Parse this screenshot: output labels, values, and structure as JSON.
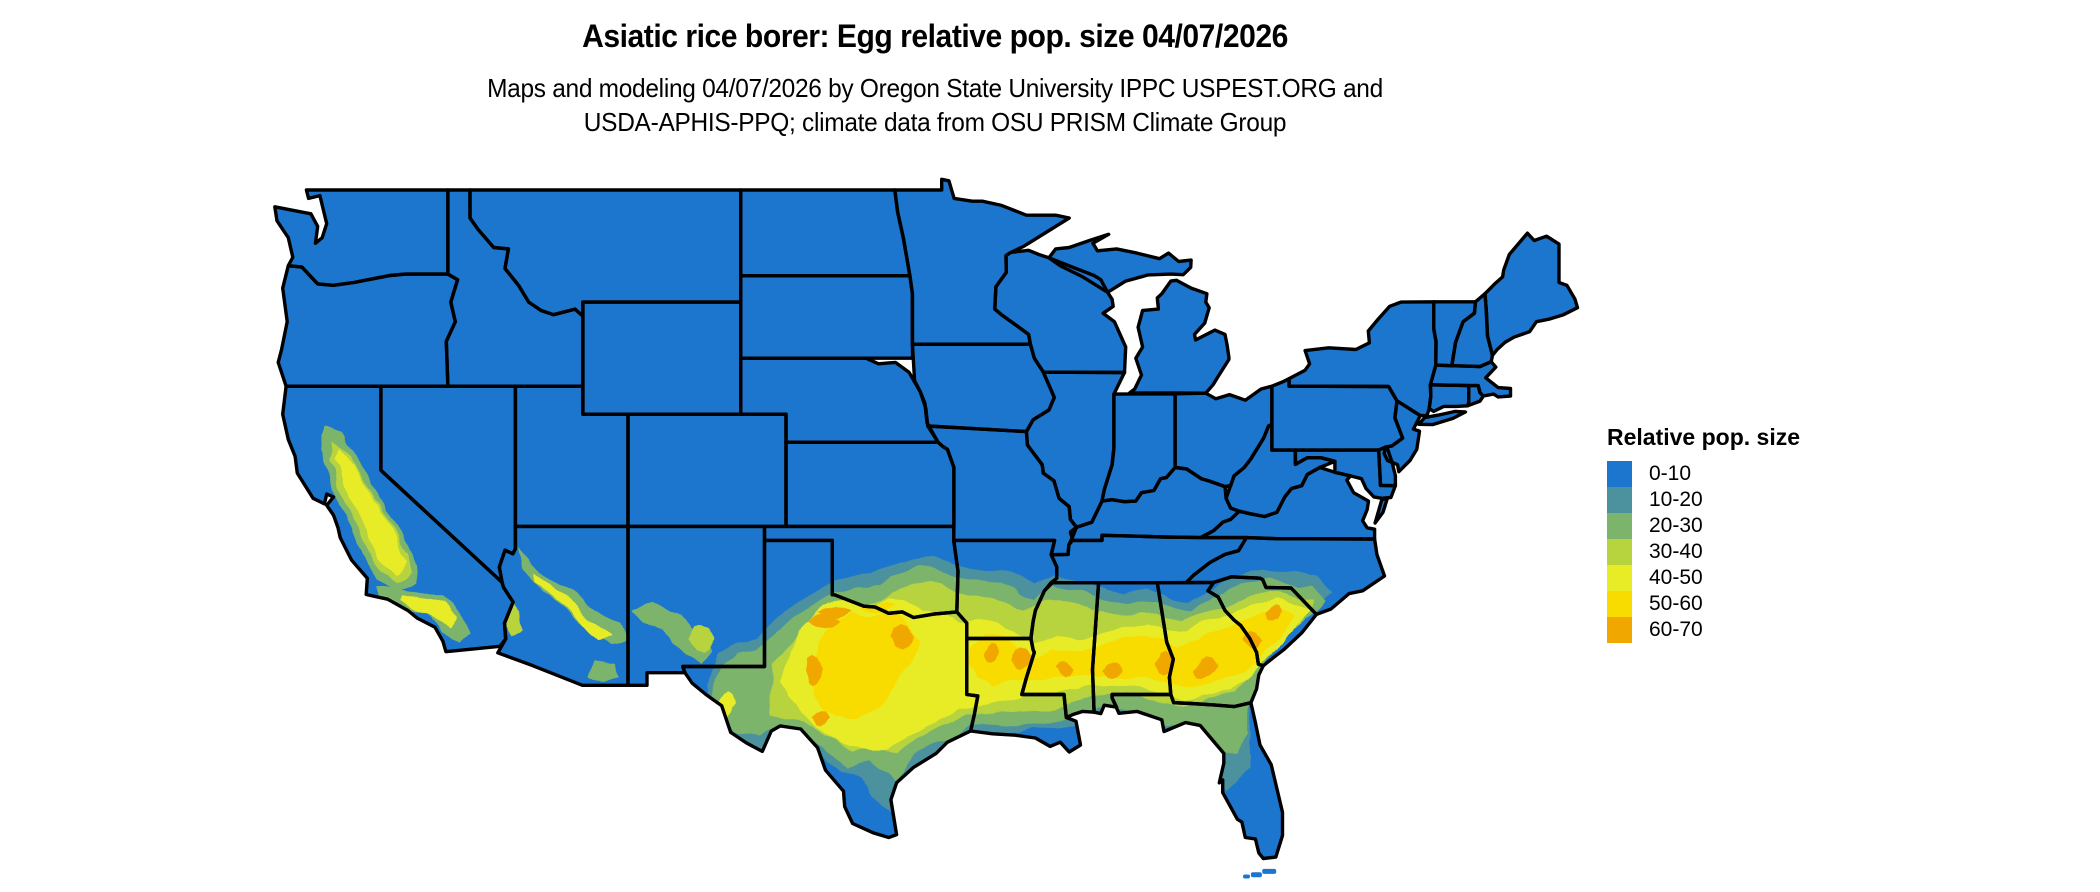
{
  "header": {
    "title": "Asiatic rice borer: Egg relative pop. size 04/07/2026",
    "subtitle_line1": "Maps and modeling 04/07/2026 by Oregon State University IPPC USPEST.ORG and",
    "subtitle_line2": "USDA-APHIS-PPQ; climate data from OSU PRISM Climate Group"
  },
  "legend": {
    "title": "Relative pop. size",
    "items": [
      {
        "label": "0-10",
        "color": "#1d76cd"
      },
      {
        "label": "10-20",
        "color": "#4b929e"
      },
      {
        "label": "20-30",
        "color": "#7cb46c"
      },
      {
        "label": "30-40",
        "color": "#b7d33e"
      },
      {
        "label": "40-50",
        "color": "#e8ec26"
      },
      {
        "label": "50-60",
        "color": "#f8dc00"
      },
      {
        "label": "60-70",
        "color": "#f0a800"
      }
    ]
  },
  "map": {
    "region": "contiguous United States",
    "background_color": "#ffffff",
    "state_border_color": "#000000"
  }
}
